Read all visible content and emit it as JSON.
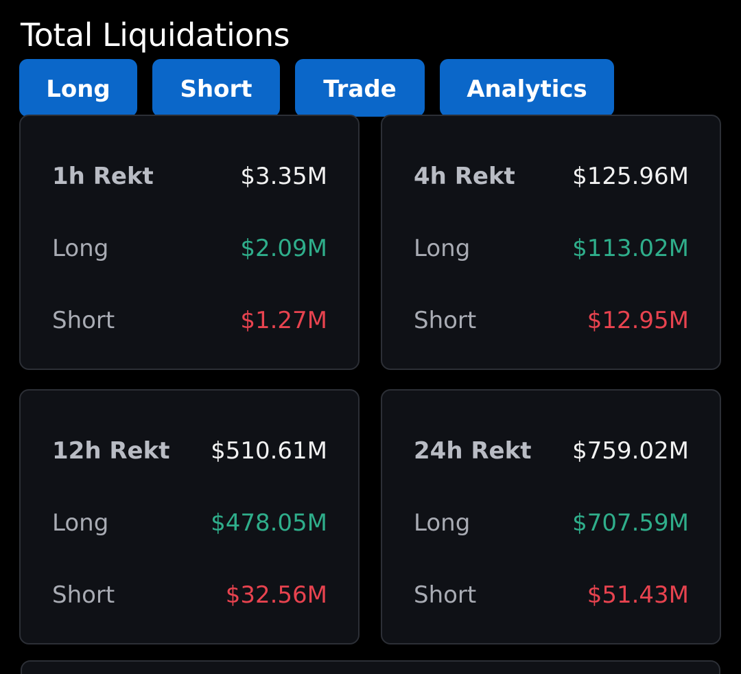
{
  "header": {
    "title": "Total Liquidations"
  },
  "tabs": [
    {
      "label": "Long"
    },
    {
      "label": "Short"
    },
    {
      "label": "Trade"
    },
    {
      "label": "Analytics"
    }
  ],
  "colors": {
    "tab_background": "#0b67c9",
    "long_value": "#2fae8b",
    "short_value": "#e8434f",
    "card_background": "#0f1116"
  },
  "cards": [
    {
      "period": "1h Rekt",
      "total": "$3.35M",
      "long_label": "Long",
      "long": "$2.09M",
      "short_label": "Short",
      "short": "$1.27M"
    },
    {
      "period": "4h Rekt",
      "total": "$125.96M",
      "long_label": "Long",
      "long": "$113.02M",
      "short_label": "Short",
      "short": "$12.95M"
    },
    {
      "period": "12h Rekt",
      "total": "$510.61M",
      "long_label": "Long",
      "long": "$478.05M",
      "short_label": "Short",
      "short": "$32.56M"
    },
    {
      "period": "24h Rekt",
      "total": "$759.02M",
      "long_label": "Long",
      "long": "$707.59M",
      "short_label": "Short",
      "short": "$51.43M"
    }
  ]
}
